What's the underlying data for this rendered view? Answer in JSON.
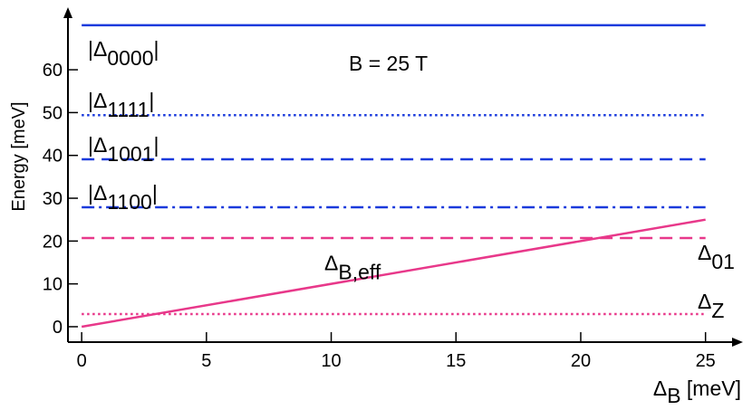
{
  "chart_data": {
    "type": "line",
    "xlim": [
      -0.55,
      26.5
    ],
    "ylim": [
      -3.6,
      74.6
    ],
    "xticks": [
      0,
      5,
      10,
      15,
      20,
      25
    ],
    "yticks": [
      0,
      10,
      20,
      30,
      40,
      50,
      60
    ],
    "x_label": {
      "main": "Δ",
      "sub": "B",
      "suffix": " [meV]"
    },
    "y_label": "Energy [meV]",
    "annotation": "B = 25 T",
    "series": [
      {
        "label": {
          "prefix": "|Δ",
          "sub": "0000",
          "suffix": "|"
        },
        "color": "#1a3adc",
        "dash": "solid",
        "x": [
          0,
          25
        ],
        "values": [
          70.4,
          70.4
        ]
      },
      {
        "label": {
          "prefix": "|Δ",
          "sub": "1111",
          "suffix": "|"
        },
        "color": "#1a3adc",
        "dash": "dotted",
        "x": [
          0,
          25
        ],
        "values": [
          49.4,
          49.4
        ]
      },
      {
        "label": {
          "prefix": "|Δ",
          "sub": "1001",
          "suffix": "|"
        },
        "color": "#1a3adc",
        "dash": "dashed",
        "x": [
          0,
          25
        ],
        "values": [
          39.1,
          39.1
        ]
      },
      {
        "label": {
          "prefix": "|Δ",
          "sub": "1100",
          "suffix": "|"
        },
        "color": "#1a3adc",
        "dash": "dashdot",
        "x": [
          0,
          25
        ],
        "values": [
          27.9,
          27.9
        ]
      },
      {
        "label": {
          "prefix": "Δ",
          "sub": "01"
        },
        "color": "#e8388a",
        "dash": "dashed",
        "x": [
          0,
          25
        ],
        "values": [
          20.7,
          20.7
        ]
      },
      {
        "label": {
          "prefix": "Δ",
          "sub": "B,eff"
        },
        "color": "#e8388a",
        "dash": "solid",
        "x": [
          0,
          25
        ],
        "values": [
          0,
          25
        ]
      },
      {
        "label": {
          "prefix": "Δ",
          "sub": "Z"
        },
        "color": "#e8388a",
        "dash": "dotted",
        "x": [
          0,
          25
        ],
        "values": [
          2.96,
          2.96
        ]
      }
    ]
  }
}
